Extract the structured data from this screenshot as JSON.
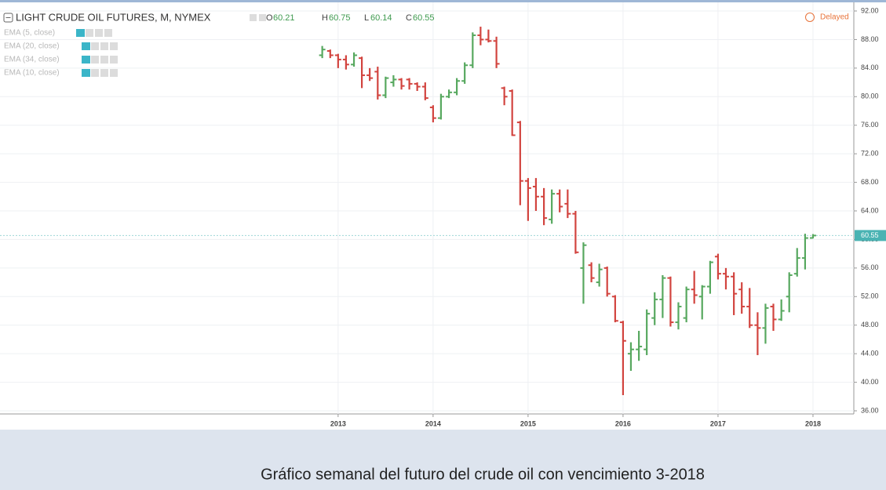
{
  "chart_data": {
    "type": "ohlc",
    "header": {
      "symbol": "LIGHT CRUDE OIL FUTURES, M, NYMEX",
      "ohlc": [
        {
          "label": "O",
          "value": "60.21"
        },
        {
          "label": "H",
          "value": "60.75"
        },
        {
          "label": "L",
          "value": "60.14"
        },
        {
          "label": "C",
          "value": "60.55"
        }
      ],
      "status": "Delayed"
    },
    "indicators": [
      "EMA (5, close)",
      "EMA (20, close)",
      "EMA (34, close)",
      "EMA (10, close)"
    ],
    "caption": "Gráfico semanal del futuro del crude oil con vencimiento 3-2018",
    "up_color": "#57a85f",
    "down_color": "#d2443f",
    "x": [
      2012.833,
      2012.917,
      2013.0,
      2013.083,
      2013.167,
      2013.25,
      2013.333,
      2013.417,
      2013.5,
      2013.583,
      2013.667,
      2013.75,
      2013.833,
      2013.917,
      2014.0,
      2014.083,
      2014.167,
      2014.25,
      2014.333,
      2014.417,
      2014.5,
      2014.583,
      2014.667,
      2014.75,
      2014.833,
      2014.917,
      2015.0,
      2015.083,
      2015.167,
      2015.25,
      2015.333,
      2015.417,
      2015.5,
      2015.583,
      2015.667,
      2015.75,
      2015.833,
      2015.917,
      2016.0,
      2016.083,
      2016.167,
      2016.25,
      2016.333,
      2016.417,
      2016.5,
      2016.583,
      2016.667,
      2016.75,
      2016.833,
      2016.917,
      2017.0,
      2017.083,
      2017.167,
      2017.25,
      2017.333,
      2017.417,
      2017.5,
      2017.583,
      2017.667,
      2017.75,
      2017.833,
      2017.917,
      2018.0
    ],
    "open": [
      85.8,
      86.4,
      85.8,
      85.2,
      84.5,
      85.4,
      83.0,
      83.5,
      80.2,
      82.0,
      82.4,
      82.4,
      81.8,
      81.4,
      78.5,
      77.0,
      80.0,
      80.6,
      82.2,
      84.4,
      88.6,
      88.0,
      87.8,
      81.2,
      80.8,
      76.4,
      68.2,
      67.4,
      66.0,
      62.8,
      66.4,
      65.0,
      63.6,
      56.0,
      56.4,
      54.0,
      56.0,
      52.0,
      48.4,
      44.0,
      44.6,
      44.6,
      49.0,
      51.6,
      54.6,
      48.4,
      49.0,
      53.0,
      52.0,
      53.4,
      57.6,
      55.2,
      54.8,
      53.0,
      50.6,
      48.0,
      47.6,
      50.6,
      48.8,
      52.0,
      55.2,
      57.4,
      60.21
    ],
    "high": [
      87.1,
      86.6,
      86.0,
      85.8,
      86.2,
      85.6,
      84.0,
      84.2,
      82.8,
      83.0,
      82.6,
      82.6,
      82.0,
      82.0,
      78.8,
      80.4,
      81.0,
      82.6,
      84.8,
      89.0,
      89.8,
      89.4,
      88.4,
      81.4,
      81.0,
      76.6,
      68.6,
      68.6,
      67.2,
      67.0,
      67.0,
      67.0,
      64.0,
      59.6,
      56.8,
      56.6,
      56.2,
      52.2,
      48.6,
      45.6,
      47.2,
      50.2,
      52.6,
      55.0,
      54.8,
      51.2,
      53.4,
      55.6,
      53.6,
      57.0,
      58.0,
      56.0,
      55.4,
      54.0,
      53.2,
      49.8,
      51.0,
      51.0,
      51.6,
      55.4,
      58.8,
      60.8,
      60.75
    ],
    "low": [
      85.4,
      85.4,
      84.0,
      83.8,
      84.2,
      81.2,
      82.2,
      79.6,
      79.8,
      81.4,
      81.0,
      81.0,
      80.8,
      79.5,
      76.4,
      76.8,
      79.8,
      80.2,
      81.8,
      84.0,
      87.2,
      87.6,
      84.0,
      78.8,
      74.5,
      64.8,
      62.6,
      64.0,
      62.0,
      62.2,
      63.8,
      63.0,
      58.0,
      51.0,
      54.0,
      53.4,
      52.0,
      48.4,
      38.2,
      41.6,
      43.0,
      43.8,
      48.0,
      49.0,
      47.8,
      47.4,
      48.4,
      51.0,
      48.8,
      52.4,
      54.4,
      53.0,
      49.4,
      49.6,
      47.6,
      43.8,
      45.4,
      47.2,
      48.6,
      49.8,
      54.8,
      55.8,
      60.14
    ],
    "close": [
      86.6,
      85.8,
      85.2,
      84.5,
      85.8,
      83.0,
      82.6,
      80.2,
      82.6,
      82.4,
      81.5,
      81.8,
      81.4,
      79.8,
      77.0,
      80.0,
      80.6,
      82.2,
      84.4,
      88.6,
      88.0,
      87.8,
      84.6,
      80.0,
      74.6,
      68.2,
      67.2,
      66.0,
      63.0,
      66.4,
      64.6,
      63.6,
      58.2,
      59.2,
      54.6,
      55.8,
      52.4,
      48.6,
      45.8,
      44.6,
      45.0,
      49.6,
      51.6,
      54.6,
      48.4,
      50.6,
      53.0,
      52.2,
      53.4,
      56.8,
      55.2,
      54.8,
      52.4,
      50.6,
      48.0,
      47.6,
      50.4,
      48.8,
      50.0,
      55.0,
      57.4,
      60.2,
      60.55
    ],
    "last_price": {
      "value": 60.55,
      "label": "60.55"
    },
    "xlim": [
      2009.44,
      2018.43
    ],
    "xticks": [
      2013,
      2014,
      2015,
      2016,
      2017,
      2018
    ],
    "ylim": [
      35.56,
      92.66
    ],
    "yticks": [
      {
        "value": 36,
        "label": "36.00"
      },
      {
        "value": 40,
        "label": "40.00"
      },
      {
        "value": 44,
        "label": "44.00"
      },
      {
        "value": 48,
        "label": "48.00"
      },
      {
        "value": 52,
        "label": "52.00"
      },
      {
        "value": 56,
        "label": "56.00"
      },
      {
        "value": 60,
        "label": "60.00"
      },
      {
        "value": 64,
        "label": "64.00"
      },
      {
        "value": 68,
        "label": "68.00"
      },
      {
        "value": 72,
        "label": "72.00"
      },
      {
        "value": 76,
        "label": "76.00"
      },
      {
        "value": 80,
        "label": "80.00"
      },
      {
        "value": 84,
        "label": "84.00"
      },
      {
        "value": 88,
        "label": "88.00"
      },
      {
        "value": 92,
        "label": "92.00"
      }
    ],
    "grid": true
  }
}
